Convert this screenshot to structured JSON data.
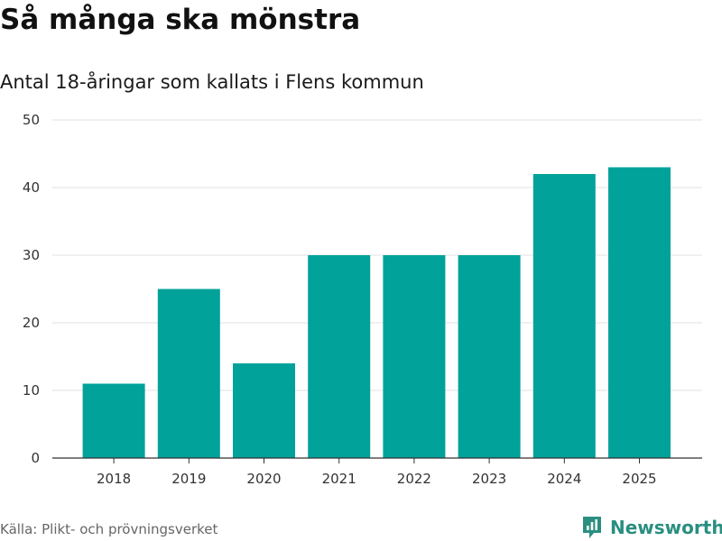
{
  "header": {
    "title": "Så många ska mönstra",
    "subtitle": "Antal 18-åringar som kallats i Flens kommun"
  },
  "footer": {
    "source": "Källa: Plikt- och prövningsverket",
    "brand": "Newsworthy",
    "brand_icon": "newsworthy-logo-icon"
  },
  "colors": {
    "bar": "#00a29a",
    "grid": "#e2e2e2",
    "axis": "#333333",
    "brand": "#2a8f80"
  },
  "chart_data": {
    "type": "bar",
    "title": "Så många ska mönstra",
    "subtitle": "Antal 18-åringar som kallats i Flens kommun",
    "categories": [
      "2018",
      "2019",
      "2020",
      "2021",
      "2022",
      "2023",
      "2024",
      "2025"
    ],
    "values": [
      11,
      25,
      14,
      30,
      30,
      30,
      42,
      43
    ],
    "xlabel": "",
    "ylabel": "",
    "ylim": [
      0,
      50
    ],
    "yticks": [
      0,
      10,
      20,
      30,
      40,
      50
    ],
    "grid": true,
    "legend": "none"
  }
}
